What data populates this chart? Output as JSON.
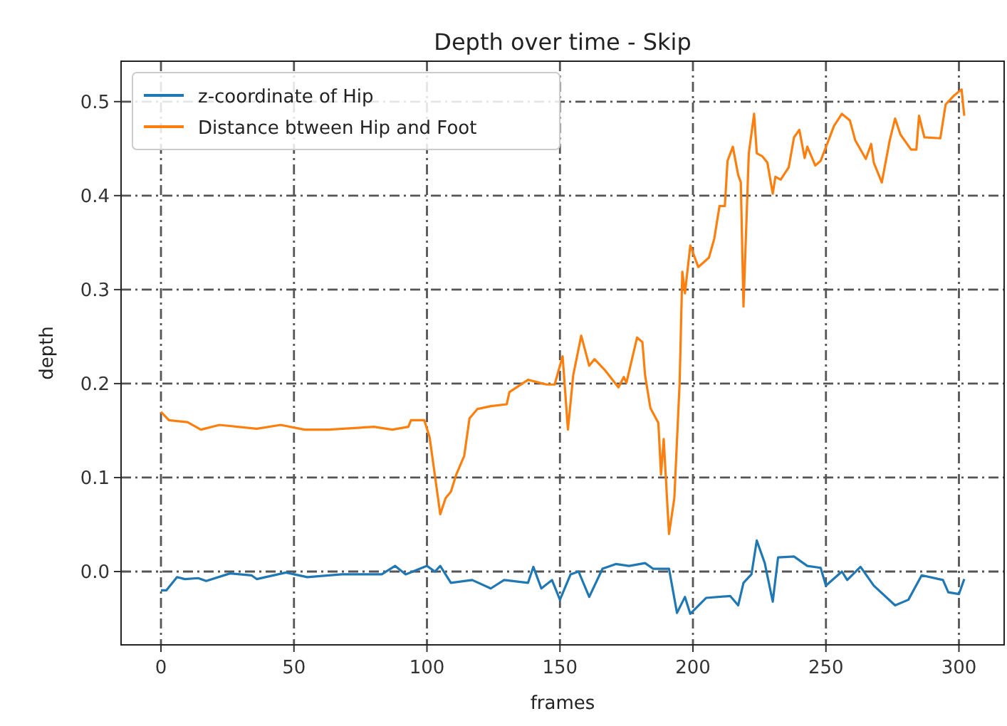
{
  "chart_data": {
    "type": "line",
    "title": "Depth over time - Skip",
    "xlabel": "frames",
    "ylabel": "depth",
    "xlim": [
      -15,
      317
    ],
    "ylim": [
      -0.078,
      0.543
    ],
    "xticks": [
      0,
      50,
      100,
      150,
      200,
      250,
      300
    ],
    "yticks": [
      {
        "value": 0,
        "label": "0.0"
      },
      0.1,
      0.2,
      0.3,
      0.4,
      0.5
    ],
    "grid": true,
    "legend": "top left",
    "line_style": "solid",
    "marker": "none",
    "series": [
      {
        "name": "z-coordinate of Hip",
        "color": "#1f77b4",
        "x": [
          0,
          2,
          6,
          9,
          14,
          17,
          26,
          34,
          36,
          47,
          55,
          68,
          83,
          88,
          92,
          100,
          103,
          105,
          109,
          117,
          124,
          129,
          138,
          140,
          143,
          147,
          150,
          154,
          157,
          161,
          166,
          171,
          176,
          182,
          185,
          191,
          194,
          197,
          199,
          205,
          214,
          217,
          219,
          222,
          224,
          227,
          230,
          232,
          238,
          243,
          248,
          250,
          256,
          258,
          263,
          268,
          276,
          281,
          286,
          294,
          296,
          300,
          302
        ],
        "values": [
          -0.02,
          -0.02,
          -0.006,
          -0.008,
          -0.007,
          -0.01,
          -0.002,
          -0.004,
          -0.008,
          -0.001,
          -0.006,
          -0.003,
          -0.003,
          0.006,
          -0.003,
          0.006,
          0,
          0.006,
          -0.012,
          -0.009,
          -0.018,
          -0.009,
          -0.012,
          0.005,
          -0.018,
          -0.009,
          -0.03,
          -0.003,
          0,
          -0.027,
          0.003,
          0.008,
          0.006,
          0.009,
          0.003,
          0.003,
          -0.044,
          -0.027,
          -0.045,
          -0.028,
          -0.026,
          -0.036,
          -0.012,
          -0.003,
          0.033,
          0.009,
          -0.032,
          0.015,
          0.016,
          0.006,
          0.004,
          -0.015,
          0,
          -0.009,
          0.005,
          -0.015,
          -0.036,
          -0.03,
          -0.004,
          -0.009,
          -0.022,
          -0.024,
          -0.008
        ]
      },
      {
        "name": "Distance btween Hip and Foot",
        "color": "#ff7f0e",
        "x": [
          0,
          3,
          10,
          15,
          22,
          36,
          45,
          54,
          63,
          80,
          87,
          93,
          94,
          99,
          101,
          105,
          107,
          109,
          111,
          114,
          116,
          119,
          124,
          130,
          131,
          138,
          145,
          148,
          151,
          153,
          155,
          158,
          161,
          163,
          167,
          172,
          174,
          175,
          179,
          181,
          182,
          184,
          187,
          188,
          189,
          191,
          193,
          195,
          196,
          197,
          199,
          202,
          206,
          208,
          210,
          212,
          213,
          215,
          217,
          218,
          219,
          221,
          223,
          224,
          226,
          228,
          230,
          231,
          233,
          236,
          238,
          240,
          242,
          243,
          246,
          248,
          251,
          253,
          256,
          259,
          261,
          265,
          267,
          268,
          271,
          274,
          276,
          278,
          282,
          284,
          285,
          287,
          293,
          295,
          298,
          301,
          302
        ],
        "values": [
          0.17,
          0.161,
          0.159,
          0.151,
          0.156,
          0.152,
          0.156,
          0.151,
          0.151,
          0.154,
          0.151,
          0.154,
          0.161,
          0.161,
          0.143,
          0.061,
          0.078,
          0.085,
          0.103,
          0.123,
          0.163,
          0.173,
          0.176,
          0.178,
          0.191,
          0.204,
          0.199,
          0.199,
          0.229,
          0.151,
          0.209,
          0.251,
          0.219,
          0.226,
          0.214,
          0.196,
          0.207,
          0.201,
          0.249,
          0.244,
          0.209,
          0.174,
          0.158,
          0.103,
          0.141,
          0.04,
          0.078,
          0.201,
          0.319,
          0.296,
          0.347,
          0.324,
          0.334,
          0.354,
          0.389,
          0.389,
          0.437,
          0.452,
          0.422,
          0.414,
          0.282,
          0.445,
          0.487,
          0.445,
          0.442,
          0.435,
          0.402,
          0.42,
          0.417,
          0.43,
          0.462,
          0.47,
          0.44,
          0.452,
          0.432,
          0.437,
          0.459,
          0.474,
          0.487,
          0.48,
          0.459,
          0.439,
          0.455,
          0.435,
          0.414,
          0.459,
          0.482,
          0.465,
          0.449,
          0.449,
          0.485,
          0.462,
          0.461,
          0.497,
          0.506,
          0.513,
          0.485
        ]
      }
    ]
  }
}
